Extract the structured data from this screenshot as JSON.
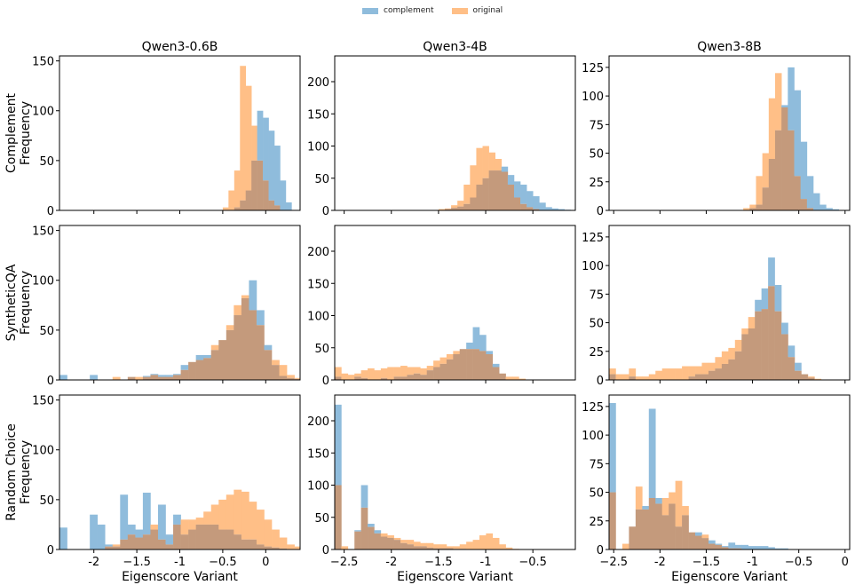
{
  "legend": {
    "complement": "complement",
    "original": "original"
  },
  "colors": {
    "complement": "#8fbcdc",
    "original": "#ffbf87",
    "overlap": "#c49a7c",
    "frame": "#000000"
  },
  "row_labels": [
    "Complement",
    "SyntheticQA",
    "Random Choice"
  ],
  "y_label": "Frequency",
  "chart_data": [
    {
      "type": "bar",
      "model": "Qwen3-0.6B",
      "dataset": "Complement",
      "xlim": [
        -2.4,
        0.4
      ],
      "ylim": [
        0,
        155
      ],
      "yticks": [
        0,
        50,
        100,
        150
      ],
      "xticks": [
        -2.0,
        -1.5,
        -1.0,
        -0.5,
        0.0
      ],
      "bin_start": -0.5,
      "bin_width": 0.0667,
      "series": [
        {
          "name": "complement",
          "values": [
            0,
            0,
            3,
            10,
            20,
            50,
            100,
            93,
            80,
            65,
            30,
            8
          ]
        },
        {
          "name": "original",
          "values": [
            3,
            20,
            40,
            145,
            125,
            85,
            50,
            30,
            10,
            5,
            0,
            0
          ]
        }
      ]
    },
    {
      "type": "bar",
      "model": "Qwen3-4B",
      "dataset": "Complement",
      "xlim": [
        -2.6,
        -0.05
      ],
      "ylim": [
        0,
        240
      ],
      "yticks": [
        0,
        50,
        100,
        150,
        200
      ],
      "xticks": [
        -2.5,
        -2.0,
        -1.5,
        -1.0,
        -0.5
      ],
      "bin_start": -1.5,
      "bin_width": 0.0667,
      "series": [
        {
          "name": "complement",
          "values": [
            0,
            2,
            4,
            6,
            10,
            20,
            40,
            50,
            62,
            62,
            68,
            55,
            45,
            40,
            30,
            22,
            12,
            5,
            3,
            2,
            1
          ]
        },
        {
          "name": "original",
          "values": [
            2,
            3,
            8,
            15,
            40,
            70,
            97,
            100,
            90,
            80,
            60,
            40,
            20,
            10,
            5,
            2,
            0,
            0,
            0,
            0,
            0
          ]
        }
      ]
    },
    {
      "type": "bar",
      "model": "Qwen3-8B",
      "dataset": "Complement",
      "xlim": [
        -2.55,
        0.05
      ],
      "ylim": [
        0,
        135
      ],
      "yticks": [
        0,
        25,
        50,
        75,
        100,
        125
      ],
      "xticks": [
        -2.5,
        -2.0,
        -1.5,
        -1.0,
        -0.5,
        0.0
      ],
      "bin_start": -1.1,
      "bin_width": 0.0688,
      "series": [
        {
          "name": "complement",
          "values": [
            0,
            2,
            5,
            20,
            45,
            70,
            92,
            125,
            105,
            60,
            30,
            15,
            5,
            2,
            1
          ]
        },
        {
          "name": "original",
          "values": [
            2,
            5,
            30,
            50,
            98,
            120,
            90,
            70,
            30,
            10,
            2,
            0,
            0,
            0,
            0
          ]
        }
      ]
    },
    {
      "type": "bar",
      "model": "Qwen3-0.6B",
      "dataset": "SyntheticQA",
      "xlim": [
        -2.4,
        0.4
      ],
      "ylim": [
        0,
        155
      ],
      "yticks": [
        0,
        50,
        100,
        150
      ],
      "xticks": [
        -2.0,
        -1.5,
        -1.0,
        -0.5,
        0.0
      ],
      "bin_start": -2.4,
      "bin_width": 0.0882,
      "series": [
        {
          "name": "complement",
          "values": [
            5,
            0,
            0,
            0,
            5,
            0,
            0,
            0,
            0,
            3,
            0,
            4,
            6,
            5,
            5,
            6,
            15,
            18,
            25,
            25,
            30,
            40,
            50,
            65,
            82,
            100,
            70,
            35,
            15,
            4,
            2,
            1
          ]
        },
        {
          "name": "original",
          "values": [
            0,
            0,
            0,
            0,
            0,
            0,
            0,
            3,
            0,
            3,
            3,
            3,
            5,
            3,
            3,
            5,
            10,
            18,
            20,
            22,
            35,
            40,
            55,
            75,
            85,
            70,
            55,
            30,
            20,
            15,
            5,
            2
          ]
        }
      ]
    },
    {
      "type": "bar",
      "model": "Qwen3-4B",
      "dataset": "SyntheticQA",
      "xlim": [
        -2.6,
        -0.05
      ],
      "ylim": [
        0,
        240
      ],
      "yticks": [
        0,
        50,
        100,
        150,
        200
      ],
      "xticks": [
        -2.5,
        -2.0,
        -1.5,
        -1.0,
        -0.5
      ],
      "bin_start": -2.6,
      "bin_width": 0.0697,
      "series": [
        {
          "name": "complement",
          "values": [
            5,
            0,
            0,
            5,
            3,
            0,
            0,
            3,
            0,
            5,
            5,
            8,
            10,
            8,
            15,
            20,
            25,
            32,
            40,
            48,
            58,
            82,
            70,
            45,
            25,
            10,
            0,
            0,
            0,
            0,
            0,
            0
          ]
        },
        {
          "name": "original",
          "values": [
            20,
            10,
            8,
            10,
            15,
            18,
            15,
            18,
            20,
            20,
            22,
            20,
            20,
            18,
            22,
            30,
            35,
            40,
            45,
            48,
            48,
            48,
            45,
            40,
            20,
            10,
            5,
            5,
            2,
            0,
            0,
            0
          ]
        }
      ]
    },
    {
      "type": "bar",
      "model": "Qwen3-8B",
      "dataset": "SyntheticQA",
      "xlim": [
        -2.55,
        0.05
      ],
      "ylim": [
        0,
        135
      ],
      "yticks": [
        0,
        25,
        50,
        75,
        100,
        125
      ],
      "xticks": [
        -2.5,
        -2.0,
        -1.5,
        -1.0,
        -0.5,
        0.0
      ],
      "bin_start": -2.55,
      "bin_width": 0.0716,
      "series": [
        {
          "name": "complement",
          "values": [
            5,
            0,
            0,
            3,
            0,
            0,
            0,
            0,
            0,
            0,
            0,
            0,
            3,
            5,
            5,
            8,
            10,
            14,
            18,
            25,
            40,
            45,
            70,
            80,
            107,
            83,
            50,
            30,
            15,
            5,
            2,
            0
          ]
        },
        {
          "name": "original",
          "values": [
            10,
            5,
            5,
            10,
            3,
            3,
            5,
            8,
            10,
            10,
            10,
            12,
            12,
            12,
            15,
            15,
            20,
            25,
            28,
            35,
            45,
            55,
            60,
            62,
            82,
            60,
            40,
            20,
            8,
            5,
            3,
            1
          ]
        }
      ]
    },
    {
      "type": "bar",
      "model": "Qwen3-0.6B",
      "dataset": "Random Choice",
      "xlim": [
        -2.4,
        0.4
      ],
      "ylim": [
        0,
        155
      ],
      "yticks": [
        0,
        50,
        100,
        150
      ],
      "xticks": [
        -2.0,
        -1.5,
        -1.0,
        -0.5,
        0.0
      ],
      "bin_start": -2.4,
      "bin_width": 0.0882,
      "series": [
        {
          "name": "complement",
          "values": [
            22,
            0,
            0,
            0,
            35,
            25,
            5,
            3,
            55,
            25,
            20,
            57,
            20,
            45,
            15,
            35,
            15,
            20,
            25,
            25,
            25,
            20,
            20,
            15,
            10,
            10,
            5,
            3,
            2,
            1,
            0,
            0
          ]
        },
        {
          "name": "original",
          "values": [
            0,
            0,
            0,
            0,
            0,
            0,
            3,
            5,
            10,
            15,
            12,
            15,
            25,
            10,
            5,
            25,
            30,
            30,
            32,
            38,
            45,
            50,
            55,
            60,
            58,
            48,
            40,
            30,
            20,
            12,
            5,
            3
          ]
        }
      ]
    },
    {
      "type": "bar",
      "model": "Qwen3-4B",
      "dataset": "Random Choice",
      "xlim": [
        -2.6,
        -0.05
      ],
      "ylim": [
        0,
        240
      ],
      "yticks": [
        0,
        50,
        100,
        150,
        200
      ],
      "xticks": [
        -2.5,
        -2.0,
        -1.5,
        -1.0,
        -0.5
      ],
      "bin_start": -2.6,
      "bin_width": 0.0697,
      "series": [
        {
          "name": "complement",
          "values": [
            225,
            0,
            0,
            30,
            100,
            40,
            30,
            20,
            18,
            15,
            10,
            8,
            5,
            5,
            3,
            2,
            2,
            2,
            1,
            1,
            0,
            0,
            0,
            0,
            0,
            0,
            0,
            0,
            0,
            0,
            0,
            0
          ]
        },
        {
          "name": "original",
          "values": [
            100,
            5,
            0,
            28,
            65,
            35,
            25,
            25,
            22,
            18,
            15,
            15,
            12,
            10,
            10,
            8,
            8,
            5,
            5,
            8,
            12,
            15,
            22,
            25,
            18,
            8,
            3,
            1,
            0,
            0,
            0,
            0
          ]
        }
      ]
    },
    {
      "type": "bar",
      "model": "Qwen3-8B",
      "dataset": "Random Choice",
      "xlim": [
        -2.55,
        0.05
      ],
      "ylim": [
        0,
        135
      ],
      "yticks": [
        0,
        25,
        50,
        75,
        100,
        125
      ],
      "xticks": [
        -2.5,
        -2.0,
        -1.5,
        -1.0,
        -0.5,
        0.0
      ],
      "bin_start": -2.55,
      "bin_width": 0.0716,
      "series": [
        {
          "name": "complement",
          "values": [
            128,
            0,
            0,
            20,
            35,
            38,
            123,
            45,
            30,
            40,
            20,
            30,
            15,
            15,
            10,
            8,
            5,
            3,
            6,
            4,
            4,
            3,
            3,
            3,
            2,
            1,
            1,
            0,
            0,
            0,
            0,
            0
          ]
        },
        {
          "name": "original",
          "values": [
            50,
            0,
            5,
            20,
            55,
            35,
            45,
            40,
            45,
            50,
            60,
            38,
            15,
            12,
            13,
            5,
            4,
            2,
            1,
            1,
            0,
            0,
            0,
            0,
            0,
            0,
            0,
            0,
            0,
            0,
            0,
            0
          ]
        }
      ]
    }
  ]
}
